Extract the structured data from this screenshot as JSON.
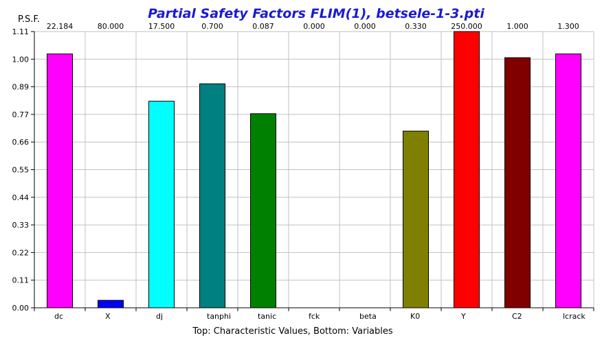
{
  "chart_data": {
    "type": "bar",
    "title": "Partial Safety Factors FLIM(1), betsele-1-3.pti",
    "ylabel": "P.S.F.",
    "xlabel": "Top: Characteristic Values, Bottom: Variables",
    "ylim": [
      0,
      1.11
    ],
    "yticks": [
      "0.00",
      "0.11",
      "0.22",
      "0.33",
      "0.44",
      "0.55",
      "0.66",
      "0.77",
      "0.89",
      "1.00",
      "1.11"
    ],
    "grid": true,
    "categories": [
      "dc",
      "X",
      "dj",
      "tanphi",
      "tanic",
      "fck",
      "beta",
      "K0",
      "Y",
      "C2",
      "lcrack"
    ],
    "characteristic_values": [
      "22.184",
      "80.000",
      "17.500",
      "0.700",
      "0.087",
      "0.000",
      "0.000",
      "0.330",
      "250.000",
      "1.000",
      "1.300"
    ],
    "values": [
      1.02,
      0.03,
      0.83,
      0.9,
      0.78,
      0.0,
      0.0,
      0.71,
      1.11,
      1.005,
      1.02
    ],
    "colors": [
      "#ff00ff",
      "#0000ff",
      "#00ffff",
      "#008080",
      "#008000",
      "#ffffff",
      "#ffffff",
      "#808000",
      "#ff0000",
      "#800000",
      "#ff00ff"
    ]
  }
}
